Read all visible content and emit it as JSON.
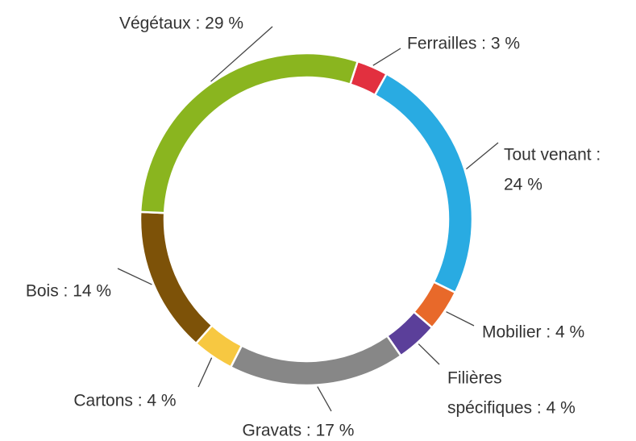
{
  "chart_data": {
    "type": "donut",
    "categories": [
      "Ferrailles",
      "Tout venant",
      "Mobilier",
      "Filières spécifiques",
      "Gravats",
      "Cartons",
      "Bois",
      "Végétaux"
    ],
    "values": [
      3,
      24,
      4,
      4,
      17,
      4,
      14,
      29
    ],
    "value_labels": [
      [
        "Ferrailles : 3 %"
      ],
      [
        "Tout venant :",
        "24 %"
      ],
      [
        "Mobilier : 4 %"
      ],
      [
        "Filières",
        "spécifiques : 4 %"
      ],
      [
        "Gravats : 17 %"
      ],
      [
        "Cartons : 4 %"
      ],
      [
        "Bois : 14 %"
      ],
      [
        "Végétaux : 29 %"
      ]
    ],
    "colors": [
      "#e2303f",
      "#29abe2",
      "#e8692a",
      "#5b3f9a",
      "#878787",
      "#f7c841",
      "#7d5208",
      "#8ab51f"
    ]
  }
}
